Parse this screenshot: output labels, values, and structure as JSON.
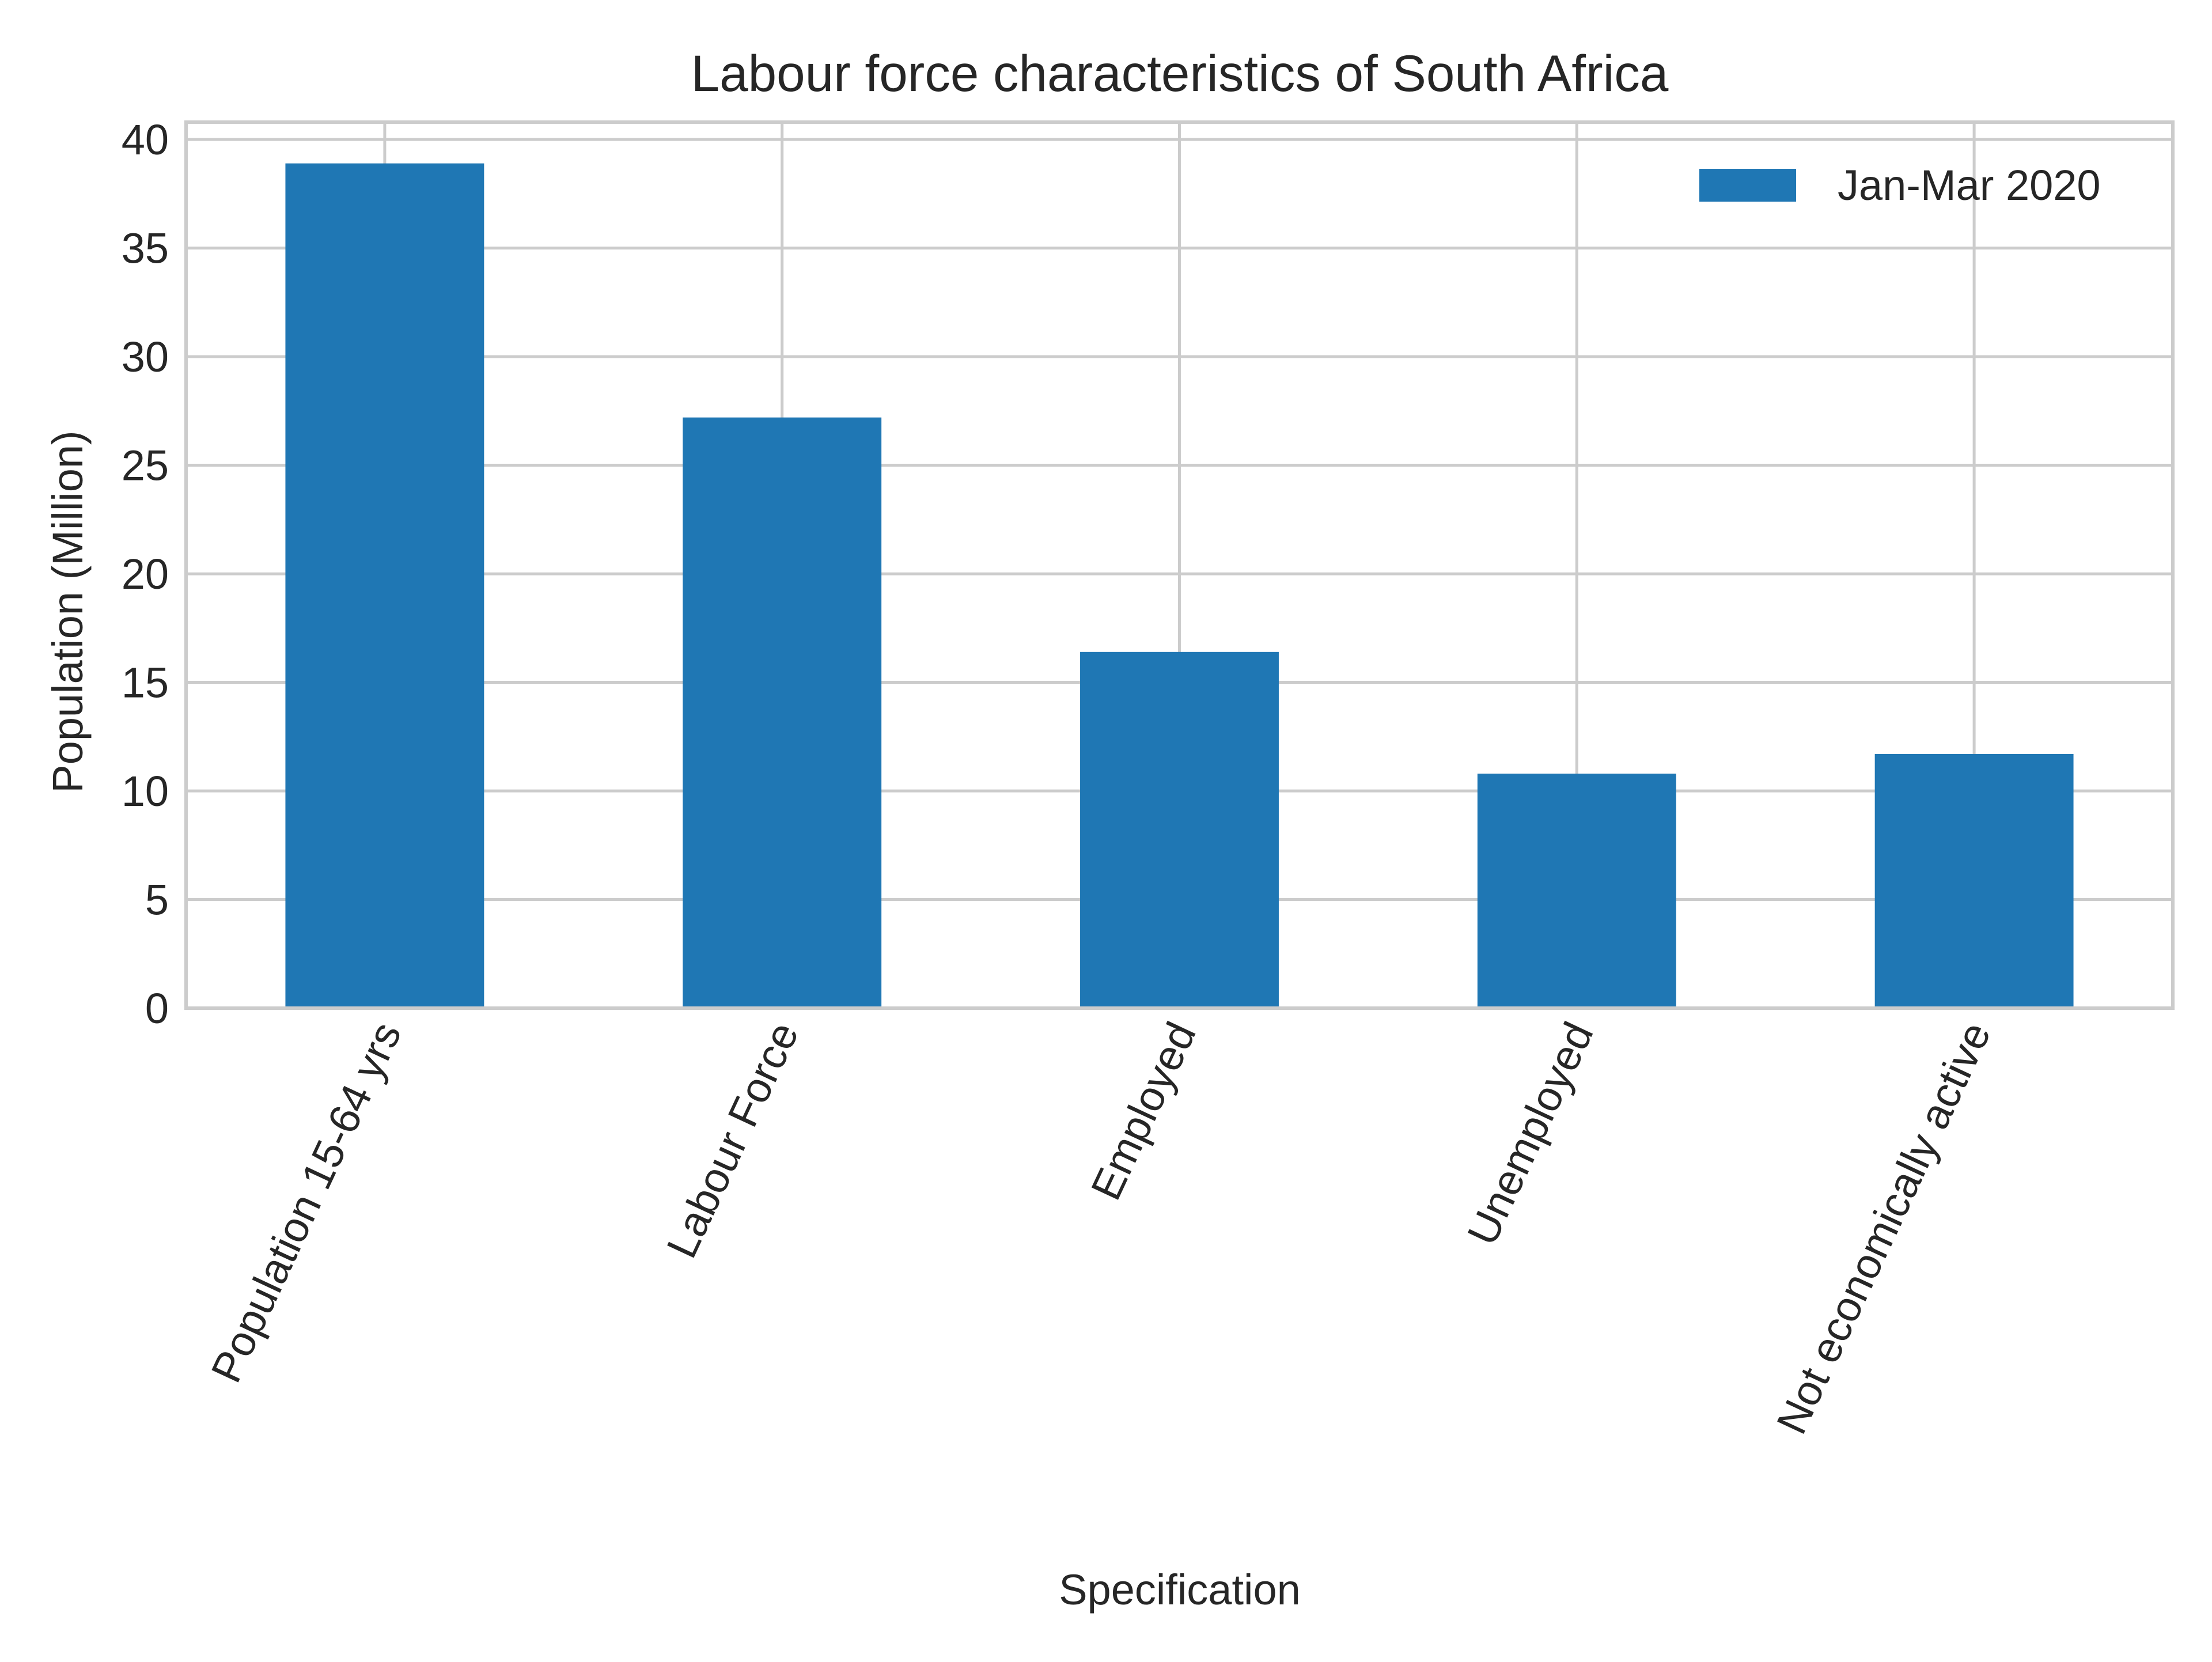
{
  "chart_data": {
    "type": "bar",
    "title": "Labour force characteristics of South Africa",
    "xlabel": "Specification",
    "ylabel": "Population (Million)",
    "categories": [
      "Population 15-64 yrs",
      "Labour Force",
      "Employed",
      "Unemployed",
      "Not economically active"
    ],
    "series": [
      {
        "name": "Jan-Mar 2020",
        "values": [
          38.9,
          27.2,
          16.4,
          10.8,
          11.7
        ]
      }
    ],
    "ylim": [
      0,
      40.8
    ],
    "yticks": [
      0,
      5,
      10,
      15,
      20,
      25,
      30,
      35,
      40
    ],
    "ytick_labels": [
      "0",
      "5",
      "10",
      "15",
      "20",
      "25",
      "30",
      "35",
      "40"
    ],
    "grid": true,
    "legend_position": "top-right",
    "bar_color": "#1f77b4"
  }
}
